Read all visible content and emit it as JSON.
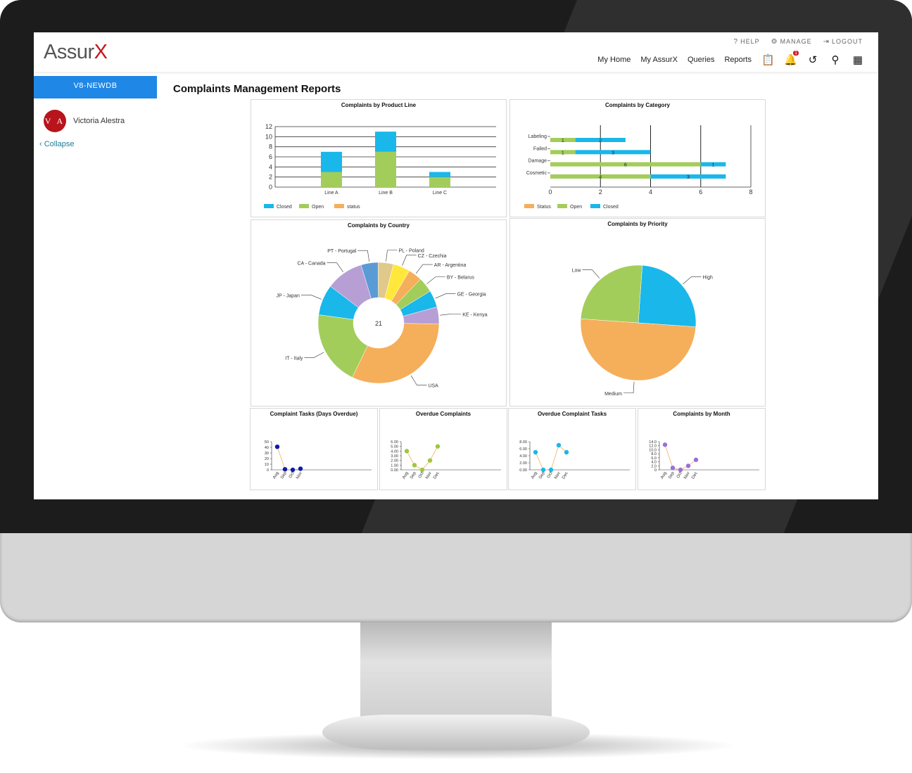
{
  "app": {
    "logo_main": "Assur",
    "logo_x": "X",
    "top_links": [
      {
        "icon": "help-icon",
        "glyph": "?",
        "label": "HELP"
      },
      {
        "icon": "gear-icon",
        "glyph": "⚙",
        "label": "MANAGE"
      },
      {
        "icon": "logout-icon",
        "glyph": "⇥",
        "label": "LOGOUT"
      }
    ],
    "nav": [
      "My Home",
      "My AssurX",
      "Queries",
      "Reports"
    ],
    "notification_count": "1"
  },
  "sidebar": {
    "db_name": "V8-NEWDB",
    "avatar_initials": "V A",
    "user_name": "Victoria Alestra",
    "collapse_label": "Collapse"
  },
  "page": {
    "title": "Complaints Management Reports"
  },
  "colors": {
    "blue": "#1ab7ea",
    "green": "#a3cd5a",
    "orange": "#f5ae5a",
    "accent_blue": "#1f87e5",
    "brand_red": "#c4161c"
  },
  "chart_data": [
    {
      "id": "product-line",
      "type": "bar",
      "title": "Complaints by Product Line",
      "categories": [
        "Line A",
        "Line B",
        "Line C"
      ],
      "stacked": true,
      "series": [
        {
          "name": "Closed",
          "values": [
            4,
            4,
            1
          ]
        },
        {
          "name": "Open",
          "values": [
            3,
            7,
            2
          ]
        },
        {
          "name": "status",
          "values": [
            0,
            0,
            0
          ]
        }
      ],
      "ylim": [
        0,
        12
      ],
      "yticks": [
        0,
        2,
        4,
        6,
        8,
        10,
        12
      ],
      "legend": "bottom-left"
    },
    {
      "id": "category",
      "type": "bar",
      "orientation": "horizontal",
      "title": "Complaints by Category",
      "categories": [
        "Labeling",
        "Failed",
        "Damage",
        "Cosmetic"
      ],
      "stacked": true,
      "series": [
        {
          "name": "Status",
          "values": [
            0,
            0,
            0,
            0
          ]
        },
        {
          "name": "Open",
          "values": [
            1,
            1,
            6,
            4
          ]
        },
        {
          "name": "Closed",
          "values": [
            2,
            3,
            1,
            3
          ]
        }
      ],
      "xlim": [
        0,
        8
      ],
      "xticks": [
        0,
        2,
        4,
        6,
        8
      ],
      "legend": "bottom-left"
    },
    {
      "id": "country",
      "type": "pie",
      "donut": true,
      "title": "Complaints by Country",
      "center_label": "21",
      "slices": [
        {
          "label": "USA",
          "value": 35,
          "color": "#f5ae5a"
        },
        {
          "label": "IT - Italy",
          "value": 22,
          "color": "#a3cd5a"
        },
        {
          "label": "JP - Japan",
          "value": 9,
          "color": "#1ab7ea"
        },
        {
          "label": "CA - Canada",
          "value": 11,
          "color": "#b79fd6"
        },
        {
          "label": "PT - Portugal",
          "value": 5,
          "color": "#5a9bd5"
        },
        {
          "label": "PL - Poland",
          "value": 4.5,
          "color": "#e0c98a"
        },
        {
          "label": "CZ - Czechia",
          "value": 5,
          "color": "#ffe83a"
        },
        {
          "label": "AR - Argentina",
          "value": 4,
          "color": "#f5ae5a"
        },
        {
          "label": "BY - Belarus",
          "value": 4.5,
          "color": "#a3cd5a"
        },
        {
          "label": "GE - Georgia",
          "value": 5,
          "color": "#1ab7ea"
        },
        {
          "label": "KE - Kenya",
          "value": 5,
          "color": "#b79fd6"
        }
      ]
    },
    {
      "id": "priority",
      "type": "pie",
      "title": "Complaints by Priority",
      "slices": [
        {
          "label": "High",
          "value": 25,
          "color": "#1ab7ea"
        },
        {
          "label": "Medium",
          "value": 50,
          "color": "#f5ae5a"
        },
        {
          "label": "Low",
          "value": 25,
          "color": "#a3cd5a"
        }
      ]
    },
    {
      "id": "tasks-days-overdue",
      "type": "line",
      "title": "Complaint Tasks (Days Overdue)",
      "categories": [
        "Aug",
        "Sep",
        "Oct",
        "Nov"
      ],
      "values": [
        41,
        1,
        0,
        2
      ],
      "ylim": [
        0,
        50
      ],
      "yticks": [
        "0",
        "10",
        "20",
        "30",
        "40",
        "50"
      ],
      "point_color": "#0f1aa8"
    },
    {
      "id": "overdue-complaints",
      "type": "line",
      "title": "Overdue Complaints",
      "categories": [
        "Aug",
        "Sep",
        "Oct",
        "Nov",
        "Dec"
      ],
      "values": [
        4,
        1,
        0,
        2,
        5
      ],
      "ylim": [
        0,
        6
      ],
      "yticks": [
        "0.00",
        "1.00",
        "2.00",
        "3.00",
        "4.00",
        "5.00",
        "6.00"
      ],
      "point_color": "#9cc83c"
    },
    {
      "id": "overdue-tasks",
      "type": "line",
      "title": "Overdue Complaint Tasks",
      "categories": [
        "Aug",
        "Sep",
        "Oct",
        "Nov",
        "Dec"
      ],
      "values": [
        5,
        0,
        0,
        7,
        5
      ],
      "ylim": [
        0,
        8
      ],
      "yticks": [
        "0.00",
        "2.00",
        "4.00",
        "6.00",
        "8.00"
      ],
      "point_color": "#1ab7ea"
    },
    {
      "id": "by-month",
      "type": "line",
      "title": "Complaints by Month",
      "categories": [
        "Aug",
        "Sep",
        "Oct",
        "Nov",
        "Dec"
      ],
      "values": [
        12.5,
        1,
        0,
        2,
        5
      ],
      "ylim": [
        0,
        14
      ],
      "yticks": [
        "0",
        "2.0",
        "4.0",
        "6.0",
        "8.0",
        "10.0",
        "12.0",
        "14.0"
      ],
      "point_color": "#9a6fd8"
    }
  ]
}
